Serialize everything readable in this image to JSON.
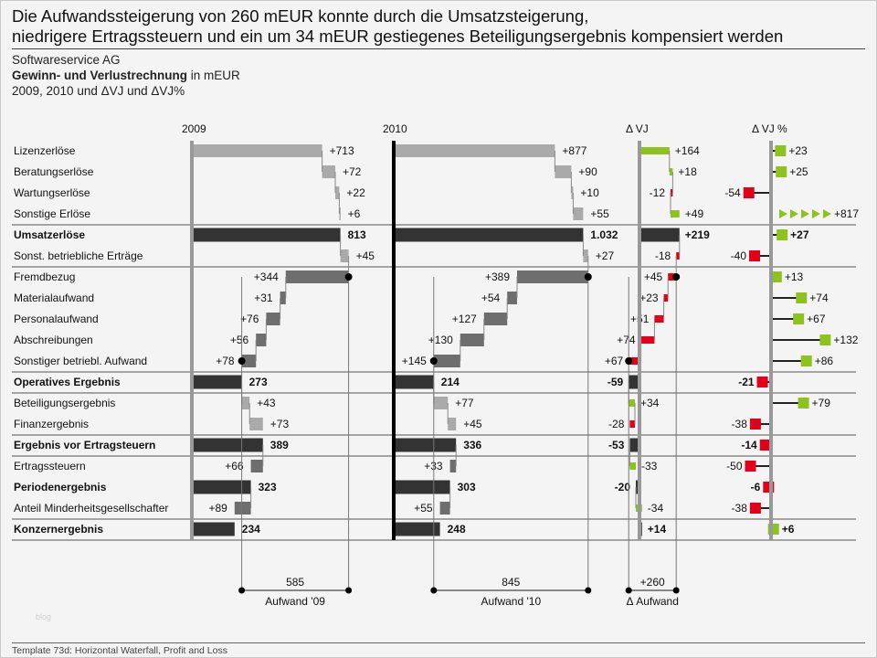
{
  "headline": {
    "line1": "Die Aufwandssteigerung von 260 mEUR konnte durch die Umsatzsteigerung,",
    "line2": "niedrigere Ertragssteuern und ein um 34 mEUR gestiegenes Beteiligungsergebnis kompensiert werden"
  },
  "subtitle": {
    "company": "Softwareservice AG",
    "report_bold": "Gewinn- und Verlustrechnung",
    "report_unit": " in mEUR",
    "periods": "2009, 2010 und ΔVJ und ΔVJ%"
  },
  "footer": "Template 73d: Horizontal Waterfall, Profit and Loss",
  "watermark": "blog",
  "colors": {
    "positive": "#8dc21f",
    "negative": "#e2001a",
    "total": "#333333",
    "income": "#aaaaaa",
    "expense": "#6e6e6e"
  },
  "chart_data": {
    "type": "waterfall",
    "columns": [
      "2009",
      "2010",
      "Δ VJ",
      "Δ VJ %"
    ],
    "rows": [
      {
        "label": "Lizenzerlöse",
        "kind": "income",
        "v2009": 713,
        "v2010": 877,
        "dvj": 164,
        "dvjp": 23
      },
      {
        "label": "Beratungserlöse",
        "kind": "income",
        "v2009": 72,
        "v2010": 90,
        "dvj": 18,
        "dvjp": 25
      },
      {
        "label": "Wartungserlöse",
        "kind": "income",
        "v2009": 22,
        "v2010": 10,
        "dvj": -12,
        "dvjp": -54
      },
      {
        "label": "Sonstige Erlöse",
        "kind": "income",
        "v2009": 6,
        "v2010": 55,
        "dvj": 49,
        "dvjp": 817
      },
      {
        "label": "Umsatzerlöse",
        "kind": "total",
        "v2009": 813,
        "v2010": 1032,
        "dvj": 219,
        "dvjp": 27
      },
      {
        "label": "Sonst. betriebliche Erträge",
        "kind": "income",
        "v2009": 45,
        "v2010": 27,
        "dvj": -18,
        "dvjp": -40
      },
      {
        "label": "Fremdbezug",
        "kind": "expense",
        "v2009": 344,
        "v2010": 389,
        "dvj": 45,
        "dvjp": 13
      },
      {
        "label": "Materialaufwand",
        "kind": "expense",
        "v2009": 31,
        "v2010": 54,
        "dvj": 23,
        "dvjp": 74
      },
      {
        "label": "Personalaufwand",
        "kind": "expense",
        "v2009": 76,
        "v2010": 127,
        "dvj": 51,
        "dvjp": 67
      },
      {
        "label": "Abschreibungen",
        "kind": "expense",
        "v2009": 56,
        "v2010": 130,
        "dvj": 74,
        "dvjp": 132
      },
      {
        "label": "Sonstiger betriebl. Aufwand",
        "kind": "expense",
        "v2009": 78,
        "v2010": 145,
        "dvj": 67,
        "dvjp": 86
      },
      {
        "label": "Operatives Ergebnis",
        "kind": "total",
        "v2009": 273,
        "v2010": 214,
        "dvj": -59,
        "dvjp": -21
      },
      {
        "label": "Beteiligungsergebnis",
        "kind": "income",
        "v2009": 43,
        "v2010": 77,
        "dvj": 34,
        "dvjp": 79
      },
      {
        "label": "Finanzergebnis",
        "kind": "income",
        "v2009": 73,
        "v2010": 45,
        "dvj": -28,
        "dvjp": -38
      },
      {
        "label": "Ergebnis vor Ertragsteuern",
        "kind": "total",
        "v2009": 389,
        "v2010": 336,
        "dvj": -53,
        "dvjp": -14
      },
      {
        "label": "Ertragssteuern",
        "kind": "expense",
        "v2009": 66,
        "v2010": 33,
        "dvj": -33,
        "dvjp": -50
      },
      {
        "label": "Periodenergebnis",
        "kind": "total",
        "v2009": 323,
        "v2010": 303,
        "dvj": -20,
        "dvjp": -6
      },
      {
        "label": "Anteil Minderheitsgesellschafter",
        "kind": "expense",
        "v2009": 89,
        "v2010": 55,
        "dvj": -34,
        "dvjp": -38
      },
      {
        "label": "Konzernergebnis",
        "kind": "total",
        "v2009": 234,
        "v2010": 248,
        "dvj": 14,
        "dvjp": 6
      }
    ],
    "brackets": [
      {
        "value": "585",
        "label": "Aufwand '09"
      },
      {
        "value": "845",
        "label": "Aufwand '10"
      },
      {
        "value": "+260",
        "label": "Δ Aufwand"
      }
    ]
  }
}
